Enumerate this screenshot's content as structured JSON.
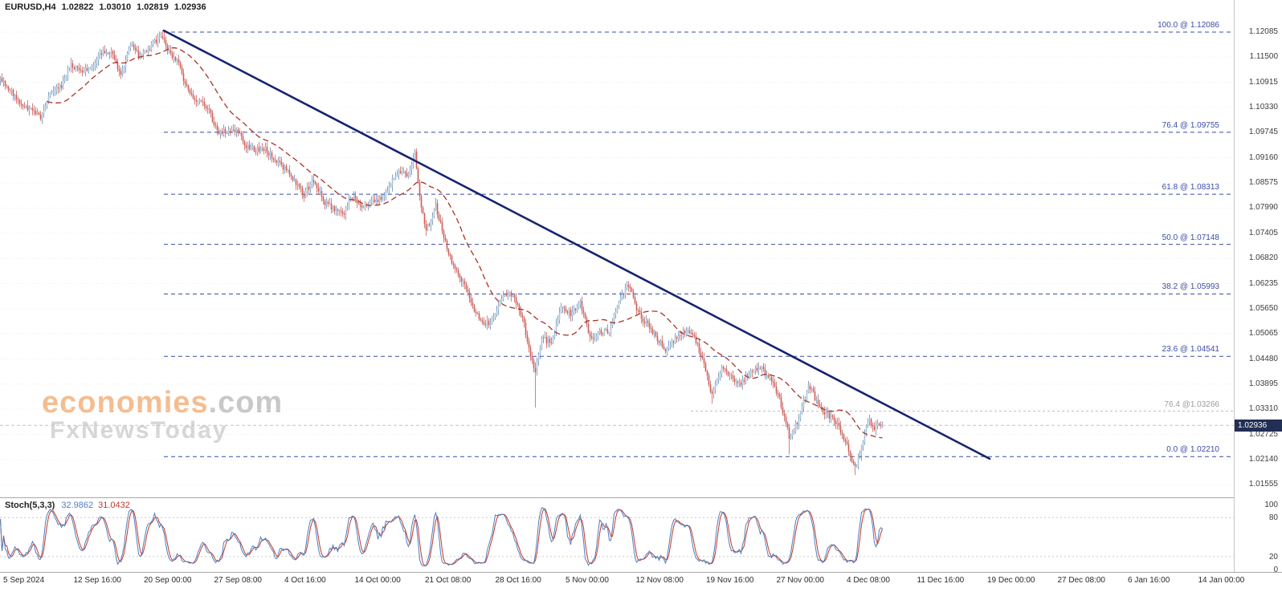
{
  "title": {
    "symbol_tf": "EURUSD,H4",
    "open": "1.02822",
    "high": "1.03010",
    "low": "1.02819",
    "close": "1.02936"
  },
  "watermark": {
    "brand": "economies",
    "suffix": ".com",
    "subbrand": "FxNewsToday"
  },
  "chart_data": {
    "type": "candlestick",
    "symbol": "EURUSD",
    "timeframe": "H4",
    "current_price": "1.02936",
    "bar_count": 550,
    "candle_up_color": "#a9c4da",
    "candle_down_color": "#d05b55",
    "y_axis": {
      "labels": [
        "1.12085",
        "1.11500",
        "1.10915",
        "1.10330",
        "1.09745",
        "1.09160",
        "1.08575",
        "1.07990",
        "1.07405",
        "1.06820",
        "1.06235",
        "1.05650",
        "1.05065",
        "1.04480",
        "1.03895",
        "1.03310",
        "1.02725",
        "1.02140",
        "1.01555"
      ]
    },
    "x_axis": {
      "labels": [
        "5 Sep 2024",
        "12 Sep 16:00",
        "20 Sep 00:00",
        "27 Sep 08:00",
        "4 Oct 16:00",
        "14 Oct 00:00",
        "21 Oct 08:00",
        "28 Oct 16:00",
        "5 Nov 00:00",
        "12 Nov 08:00",
        "19 Nov 16:00",
        "27 Nov 00:00",
        "4 Dec 08:00",
        "11 Dec 16:00",
        "19 Dec 00:00",
        "27 Dec 08:00",
        "6 Jan 16:00",
        "14 Jan 00:00"
      ]
    },
    "fibonacci": {
      "color": "#3a4ba6",
      "levels": [
        {
          "label": "100.0 @ 1.12086",
          "value": 1.12086
        },
        {
          "label": "76.4 @ 1.09755",
          "value": 1.09755
        },
        {
          "label": "61.8 @ 1.08313",
          "value": 1.08313
        },
        {
          "label": "50.0 @ 1.07148",
          "value": 1.07148
        },
        {
          "label": "38.2 @ 1.05993",
          "value": 1.05993
        },
        {
          "label": "23.6 @ 1.04541",
          "value": 1.04541
        },
        {
          "label": "0.0 @ 1.02210",
          "value": 1.0221
        }
      ]
    },
    "fib_secondary": {
      "label": "76.4 @1.03266",
      "value": 1.03266,
      "color": "#9b9b9b"
    },
    "trendline": {
      "from_bar": 102,
      "from_price": 1.1212,
      "to_bar": 616,
      "to_price": 1.0216,
      "color": "#16246e"
    },
    "moving_average": {
      "period": 30,
      "color": "#a93226",
      "style": "dashed"
    },
    "price_path": [
      [
        0,
        1.1095
      ],
      [
        6,
        1.1075
      ],
      [
        12,
        1.104
      ],
      [
        19,
        1.1025
      ],
      [
        25,
        1.1012
      ],
      [
        31,
        1.107
      ],
      [
        37,
        1.1078
      ],
      [
        44,
        1.113
      ],
      [
        50,
        1.1115
      ],
      [
        56,
        1.112
      ],
      [
        62,
        1.116
      ],
      [
        69,
        1.1163
      ],
      [
        75,
        1.111
      ],
      [
        81,
        1.1178
      ],
      [
        87,
        1.115
      ],
      [
        94,
        1.1175
      ],
      [
        100,
        1.1205
      ],
      [
        105,
        1.116
      ],
      [
        111,
        1.1135
      ],
      [
        117,
        1.1068
      ],
      [
        123,
        1.1046
      ],
      [
        129,
        1.1033
      ],
      [
        135,
        1.0978
      ],
      [
        141,
        1.0977
      ],
      [
        147,
        1.098
      ],
      [
        153,
        1.0942
      ],
      [
        159,
        1.0935
      ],
      [
        165,
        1.0937
      ],
      [
        171,
        1.091
      ],
      [
        177,
        1.089
      ],
      [
        183,
        1.0862
      ],
      [
        189,
        1.083
      ],
      [
        195,
        1.0866
      ],
      [
        201,
        1.0815
      ],
      [
        207,
        1.0798
      ],
      [
        213,
        1.0782
      ],
      [
        219,
        1.0827
      ],
      [
        225,
        1.0796
      ],
      [
        231,
        1.0812
      ],
      [
        237,
        1.082
      ],
      [
        243,
        1.0856
      ],
      [
        249,
        1.0885
      ],
      [
        254,
        1.0878
      ],
      [
        258,
        1.0928
      ],
      [
        262,
        1.08
      ],
      [
        265,
        1.0745
      ],
      [
        271,
        1.0804
      ],
      [
        277,
        1.0718
      ],
      [
        283,
        1.0655
      ],
      [
        289,
        1.0624
      ],
      [
        295,
        1.0563
      ],
      [
        301,
        1.0527
      ],
      [
        307,
        1.054
      ],
      [
        313,
        1.0598
      ],
      [
        319,
        1.0598
      ],
      [
        325,
        1.0543
      ],
      [
        329,
        1.0474
      ],
      [
        333,
        1.042
      ],
      [
        337,
        1.0495
      ],
      [
        343,
        1.0487
      ],
      [
        349,
        1.0566
      ],
      [
        355,
        1.0554
      ],
      [
        361,
        1.0577
      ],
      [
        367,
        1.0497
      ],
      [
        373,
        1.0509
      ],
      [
        379,
        1.0512
      ],
      [
        385,
        1.0587
      ],
      [
        391,
        1.062
      ],
      [
        397,
        1.0555
      ],
      [
        403,
        1.0528
      ],
      [
        409,
        1.0496
      ],
      [
        415,
        1.0467
      ],
      [
        421,
        1.0502
      ],
      [
        427,
        1.0512
      ],
      [
        433,
        1.049
      ],
      [
        439,
        1.042
      ],
      [
        443,
        1.0362
      ],
      [
        449,
        1.043
      ],
      [
        455,
        1.0404
      ],
      [
        461,
        1.039
      ],
      [
        467,
        1.0422
      ],
      [
        473,
        1.0427
      ],
      [
        479,
        1.0406
      ],
      [
        485,
        1.0354
      ],
      [
        491,
        1.0268
      ],
      [
        497,
        1.0308
      ],
      [
        503,
        1.039
      ],
      [
        509,
        1.0342
      ],
      [
        515,
        1.0317
      ],
      [
        521,
        1.03
      ],
      [
        527,
        1.0244
      ],
      [
        532,
        1.0195
      ],
      [
        536,
        1.024
      ],
      [
        540,
        1.0306
      ],
      [
        544,
        1.0289
      ],
      [
        549,
        1.0294
      ]
    ],
    "wick_extremes": [
      {
        "bar": 102,
        "type": "high",
        "price": 1.1214
      },
      {
        "bar": 258,
        "type": "high",
        "price": 1.0937
      },
      {
        "bar": 333,
        "type": "low",
        "price": 1.0335
      },
      {
        "bar": 443,
        "type": "low",
        "price": 1.0344
      },
      {
        "bar": 491,
        "type": "low",
        "price": 1.0226
      },
      {
        "bar": 532,
        "type": "low",
        "price": 1.0178
      }
    ],
    "stochastic": {
      "name": "Stoch(5,3,3)",
      "k_value": "32.9862",
      "d_value": "31.0432",
      "k_color": "#4f7ec2",
      "d_color": "#c0392b",
      "scale_labels": [
        "100",
        "80",
        "20",
        "0"
      ],
      "levels": [
        80,
        20
      ],
      "k_period": 5,
      "slowing": 3,
      "d_period": 3
    }
  }
}
